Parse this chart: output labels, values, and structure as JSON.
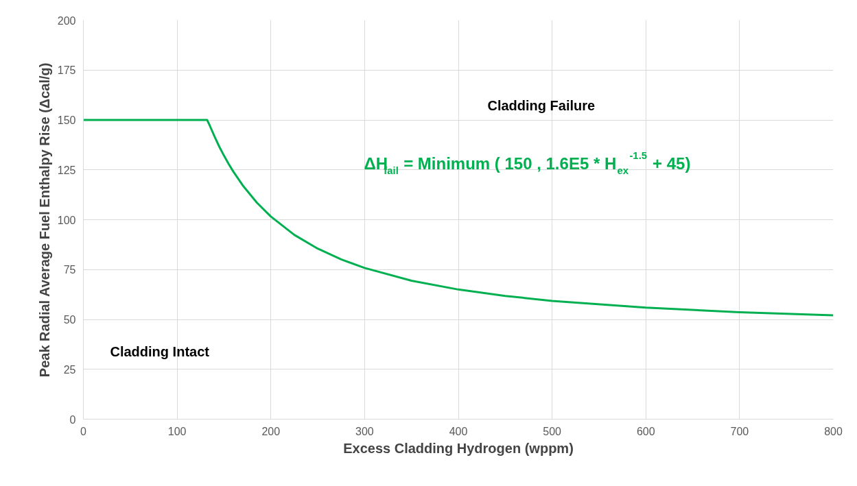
{
  "chart_data": {
    "type": "line",
    "xlabel": "Excess Cladding Hydrogen (wppm)",
    "ylabel": "Peak Radial Average Fuel Enthalpy Rise (Δcal/g)",
    "x": [
      0,
      50,
      100,
      132,
      135,
      140,
      145,
      150,
      155,
      160,
      170,
      185,
      200,
      225,
      250,
      275,
      300,
      350,
      400,
      450,
      500,
      600,
      700,
      800
    ],
    "series": [
      {
        "name": "ΔH$_{fail}$ = Minimum ( 150 , 1.6E5 * H$_{ex}$$^{-1.5}$ + 45)",
        "color": "#00b050",
        "values": [
          150,
          150,
          150,
          150,
          147,
          141.6,
          136.6,
          132.1,
          127.9,
          124.1,
          117.2,
          108.6,
          101.6,
          92.4,
          85.5,
          80.1,
          75.8,
          69.4,
          65,
          61.8,
          59.3,
          55.9,
          53.6,
          52.1
        ]
      }
    ],
    "xlim": [
      0,
      800
    ],
    "xticks": [
      0,
      100,
      200,
      300,
      400,
      500,
      600,
      700,
      800
    ],
    "ylim": [
      0,
      200
    ],
    "yticks": [
      0,
      25,
      50,
      75,
      100,
      125,
      150,
      175,
      200
    ],
    "grid": true,
    "marker": "none",
    "line_style": "solid",
    "annotations": [
      "Cladding Failure",
      "Cladding Intact"
    ]
  }
}
